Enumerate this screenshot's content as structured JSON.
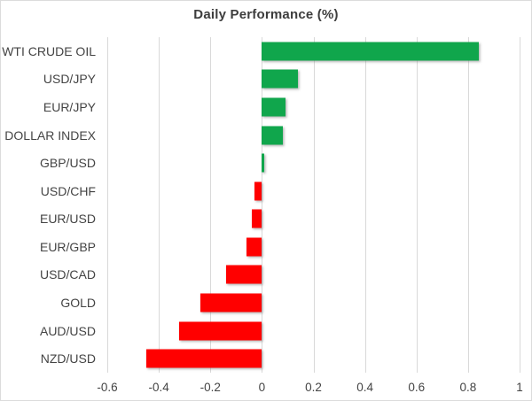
{
  "chart_data": {
    "type": "bar",
    "orientation": "horizontal",
    "title": "Daily Performance (%)",
    "categories": [
      "WTI CRUDE OIL",
      "USD/JPY",
      "EUR/JPY",
      "DOLLAR INDEX",
      "GBP/USD",
      "USD/CHF",
      "EUR/USD",
      "EUR/GBP",
      "USD/CAD",
      "GOLD",
      "AUD/USD",
      "NZD/USD"
    ],
    "values": [
      0.84,
      0.14,
      0.09,
      0.08,
      0.01,
      -0.03,
      -0.04,
      -0.06,
      -0.14,
      -0.24,
      -0.32,
      -0.45
    ],
    "xlim": [
      -0.6,
      1
    ],
    "xticks": [
      -0.6,
      -0.4,
      -0.2,
      0,
      0.2,
      0.4,
      0.6,
      0.8,
      1
    ],
    "xtick_labels": [
      "-0.6",
      "-0.4",
      "-0.2",
      "0",
      "0.2",
      "0.4",
      "0.6",
      "0.8",
      "1"
    ],
    "grid": true,
    "legend": false,
    "bar_colors": {
      "positive": "#10A64C",
      "negative": "#FF0000"
    }
  },
  "style": {
    "background": "#FFFFFF",
    "frame_border_color": "#DCDCDC",
    "gridline_color": "#D9D9D9",
    "axis_text_color": "#444444",
    "title_color": "#3D3D3D"
  }
}
